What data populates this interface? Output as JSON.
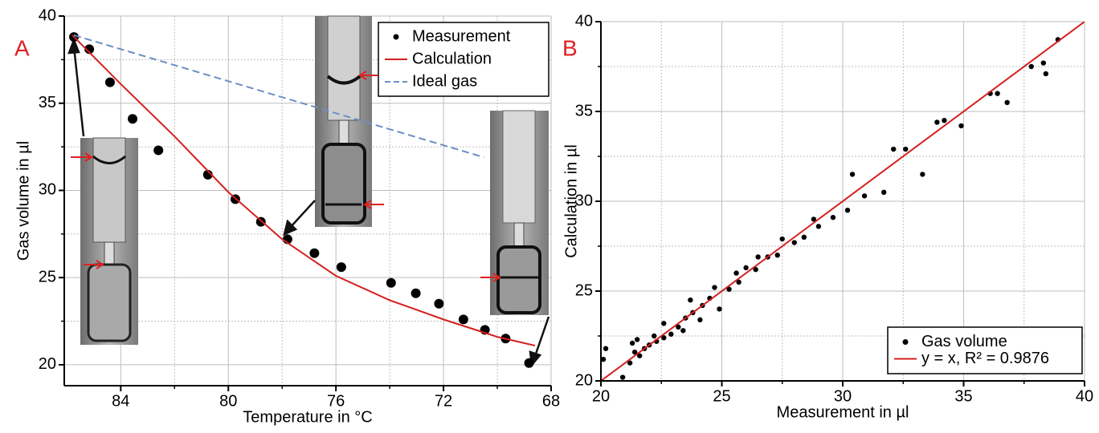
{
  "chart_data": [
    {
      "type": "scatter",
      "panel_label": "A",
      "x_label": "Temperature in °C",
      "y_label": "Gas volume in µl",
      "xlim": [
        86.1,
        68
      ],
      "xticks": [
        84,
        80,
        76,
        72,
        68
      ],
      "minor_xticks": [
        82,
        78,
        74,
        70
      ],
      "ylim": [
        18.8,
        40
      ],
      "yticks": [
        20,
        25,
        30,
        35,
        40
      ],
      "minor_yticks": [
        22.5,
        27.5,
        32.5,
        37.5
      ],
      "grid": true,
      "legend": "upper right",
      "series": [
        {
          "name": "Measurement",
          "type": "scatter",
          "color": "#000000",
          "x": [
            85.74,
            85.17,
            84.4,
            83.56,
            82.6,
            80.76,
            79.74,
            78.79,
            77.8,
            76.8,
            75.8,
            73.95,
            73.03,
            72.17,
            71.26,
            70.46,
            69.69,
            68.82
          ],
          "values": [
            38.8,
            38.1,
            36.2,
            34.1,
            32.3,
            30.9,
            29.5,
            28.2,
            27.2,
            26.4,
            25.6,
            24.7,
            24.1,
            23.5,
            22.6,
            22.0,
            21.5,
            20.1
          ]
        },
        {
          "name": "Calculation",
          "type": "line",
          "dash": false,
          "color": "#d42020",
          "x": [
            85.8,
            84,
            82,
            80,
            78,
            76,
            74,
            72,
            70,
            68.6
          ],
          "values": [
            38.9,
            36.1,
            33.1,
            29.9,
            27.2,
            25.1,
            23.7,
            22.6,
            21.6,
            21.1
          ]
        },
        {
          "name": "Ideal gas",
          "type": "line",
          "dash": true,
          "color": "#6a8fc4",
          "x": [
            85.74,
            70.5
          ],
          "values": [
            38.9,
            31.9
          ]
        }
      ]
    },
    {
      "type": "scatter",
      "panel_label": "B",
      "x_label": "Measurement in µl",
      "y_label": "Calculation in µl",
      "xlim": [
        20,
        40
      ],
      "xticks": [
        20,
        25,
        30,
        35,
        40
      ],
      "minor_xticks": [
        22.5,
        27.5,
        32.5,
        37.5
      ],
      "ylim": [
        20,
        40
      ],
      "yticks": [
        20,
        25,
        30,
        35,
        40
      ],
      "minor_yticks": [
        22.5,
        27.5,
        32.5,
        37.5
      ],
      "grid": true,
      "legend": "lower right",
      "series": [
        {
          "name": "Gas volume",
          "type": "scatter",
          "color": "#000000",
          "x": [
            20.1,
            20.2,
            20.9,
            21.2,
            21.3,
            21.4,
            21.5,
            21.6,
            21.8,
            22.0,
            22.2,
            22.3,
            22.6,
            22.6,
            22.9,
            23.2,
            23.4,
            23.5,
            23.7,
            23.8,
            24.1,
            24.2,
            24.5,
            24.7,
            24.9,
            25.3,
            25.6,
            25.7,
            26.0,
            26.4,
            26.5,
            26.9,
            27.3,
            27.5,
            28.0,
            28.4,
            28.8,
            29.0,
            29.6,
            30.2,
            30.4,
            30.9,
            31.7,
            32.1,
            32.6,
            33.3,
            33.9,
            34.2,
            34.9,
            36.1,
            36.4,
            36.8,
            37.8,
            38.3,
            38.4,
            38.9
          ],
          "values": [
            21.2,
            21.8,
            20.2,
            21.0,
            22.1,
            21.6,
            22.3,
            21.4,
            21.8,
            22.0,
            22.5,
            22.2,
            23.2,
            22.4,
            22.6,
            23.0,
            22.8,
            23.5,
            24.5,
            23.8,
            23.4,
            24.2,
            24.6,
            25.2,
            24.0,
            25.1,
            26.0,
            25.5,
            26.3,
            26.2,
            26.9,
            26.9,
            27.0,
            27.9,
            27.7,
            28.0,
            29.0,
            28.6,
            29.1,
            29.5,
            31.5,
            30.3,
            30.5,
            32.9,
            32.9,
            31.5,
            34.4,
            34.5,
            34.2,
            36.0,
            36.0,
            35.5,
            37.5,
            37.7,
            37.1,
            39.0
          ]
        },
        {
          "name": "y = x, R² = 0.9876",
          "type": "line",
          "dash": false,
          "color": "#d42020",
          "x": [
            20,
            40
          ],
          "values": [
            20,
            40
          ]
        }
      ]
    }
  ]
}
